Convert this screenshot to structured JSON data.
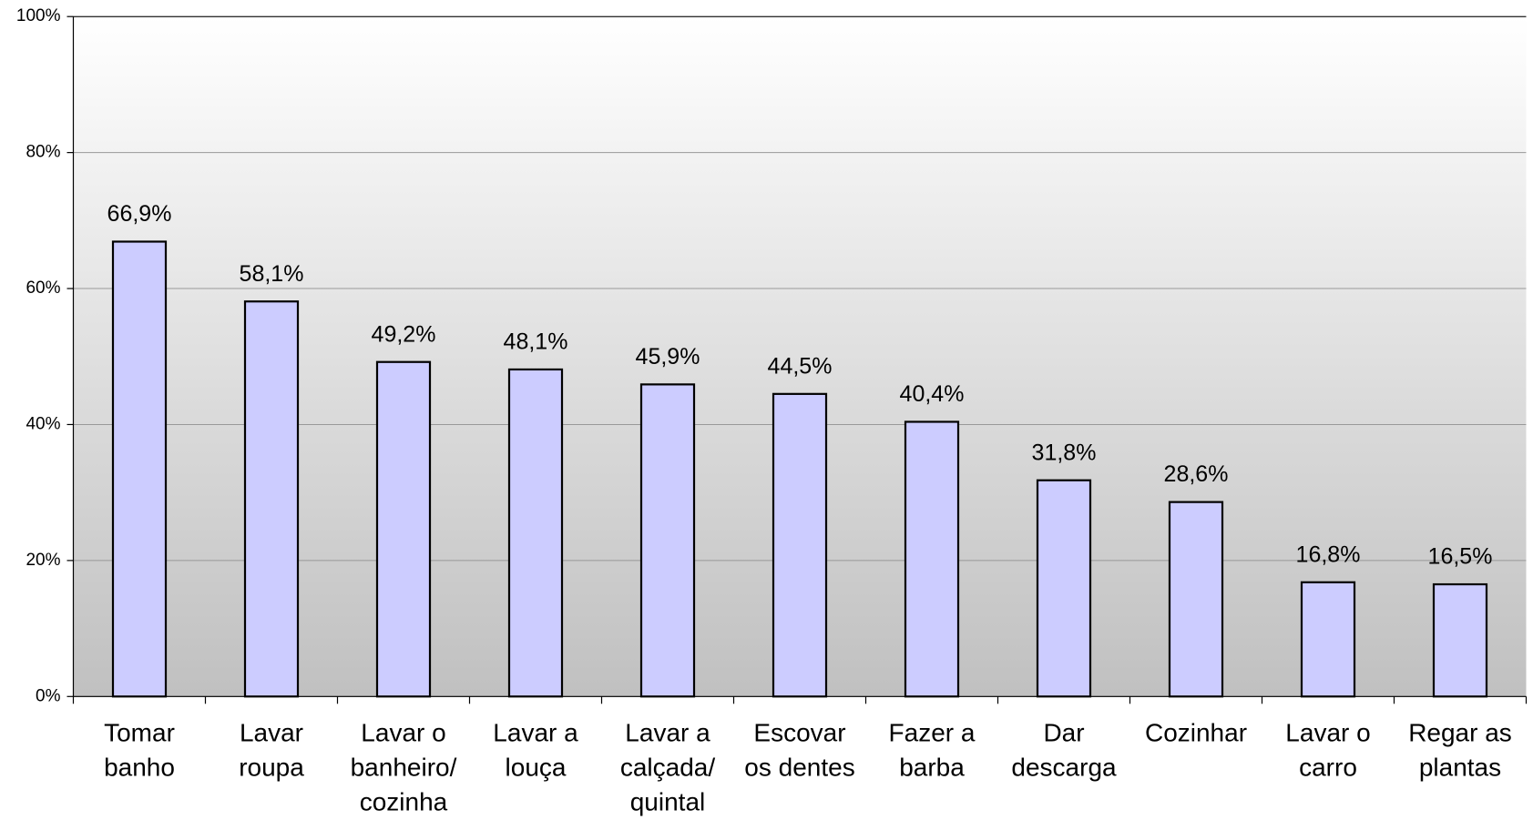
{
  "chart_data": {
    "type": "bar",
    "categories": [
      [
        "Tomar",
        "banho"
      ],
      [
        "Lavar",
        "roupa"
      ],
      [
        "Lavar o",
        "banheiro/",
        "cozinha"
      ],
      [
        "Lavar a",
        "louça"
      ],
      [
        "Lavar a",
        "calçada/",
        "quintal"
      ],
      [
        "Escovar",
        "os dentes"
      ],
      [
        "Fazer a",
        "barba"
      ],
      [
        "Dar",
        "descarga"
      ],
      [
        "Cozinhar"
      ],
      [
        "Lavar o",
        "carro"
      ],
      [
        "Regar as",
        "plantas"
      ]
    ],
    "values": [
      66.9,
      58.1,
      49.2,
      48.1,
      45.9,
      44.5,
      40.4,
      31.8,
      28.6,
      16.8,
      16.5
    ],
    "value_labels": [
      "66,9%",
      "58,1%",
      "49,2%",
      "48,1%",
      "45,9%",
      "44,5%",
      "40,4%",
      "31,8%",
      "28,6%",
      "16,8%",
      "16,5%"
    ],
    "color": "#ccccff",
    "ylim": [
      0,
      100
    ],
    "yticks": [
      {
        "value": 0,
        "label": "0%"
      },
      {
        "value": 20,
        "label": "20%"
      },
      {
        "value": 40,
        "label": "40%"
      },
      {
        "value": 60,
        "label": "60%"
      },
      {
        "value": 80,
        "label": "80%"
      },
      {
        "value": 100,
        "label": "100%"
      }
    ],
    "grid": true
  }
}
